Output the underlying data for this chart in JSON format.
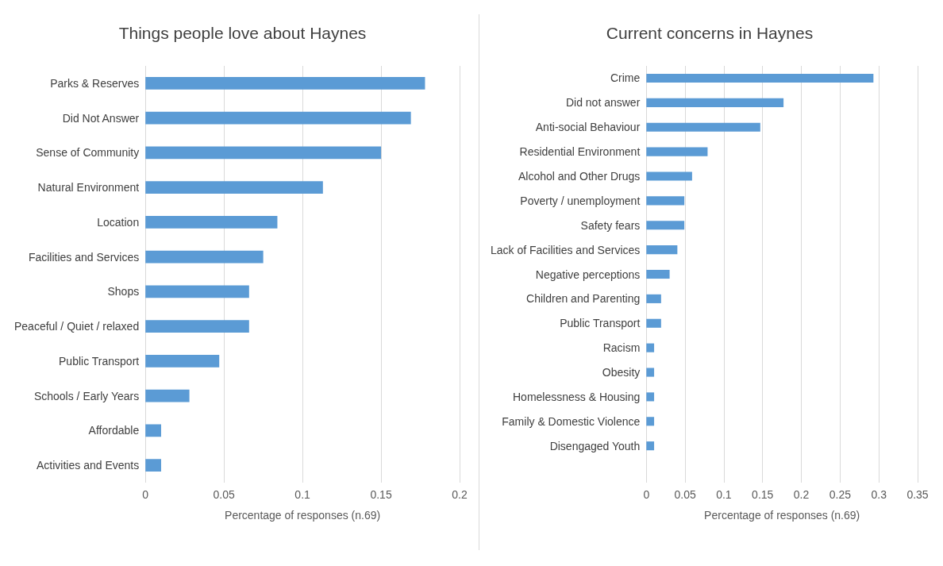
{
  "chart_data": [
    {
      "type": "bar",
      "orientation": "horizontal",
      "title": "Things people love about Haynes",
      "xlabel": "Percentage of responses (n.69)",
      "categories": [
        "Parks & Reserves",
        "Did Not Answer",
        "Sense of Community",
        "Natural Environment",
        "Location",
        "Facilities and Services",
        "Shops",
        "Peaceful / Quiet / relaxed",
        "Public Transport",
        "Schools / Early Years",
        "Affordable",
        "Activities and Events"
      ],
      "values": [
        0.178,
        0.169,
        0.15,
        0.113,
        0.084,
        0.075,
        0.066,
        0.066,
        0.047,
        0.028,
        0.01,
        0.01
      ],
      "color": "#5b9bd5",
      "xlim": [
        0,
        0.2
      ],
      "xticks": [
        0,
        0.05,
        0.1,
        0.15,
        0.2
      ],
      "grid": "x"
    },
    {
      "type": "bar",
      "orientation": "horizontal",
      "title": "Current concerns in Haynes",
      "xlabel": "Percentage of responses (n.69)",
      "categories": [
        "Crime",
        "Did not answer",
        "Anti-social Behaviour",
        "Residential Environment",
        "Alcohol and Other Drugs",
        "Poverty / unemployment",
        "Safety fears",
        "Lack of Facilities and Services",
        "Negative perceptions",
        "Children and Parenting",
        "Public Transport",
        "Racism",
        "Obesity",
        "Homelessness & Housing",
        "Family & Domestic Violence",
        "Disengaged Youth",
        null
      ],
      "values": [
        0.293,
        0.177,
        0.147,
        0.079,
        0.059,
        0.049,
        0.049,
        0.04,
        0.03,
        0.019,
        0.019,
        0.01,
        0.01,
        0.01,
        0.01,
        0.01,
        null
      ],
      "color": "#5b9bd5",
      "xlim": [
        0,
        0.35
      ],
      "xticks": [
        0,
        0.05,
        0.1,
        0.15,
        0.2,
        0.25,
        0.3,
        0.35
      ],
      "grid": "x"
    }
  ]
}
